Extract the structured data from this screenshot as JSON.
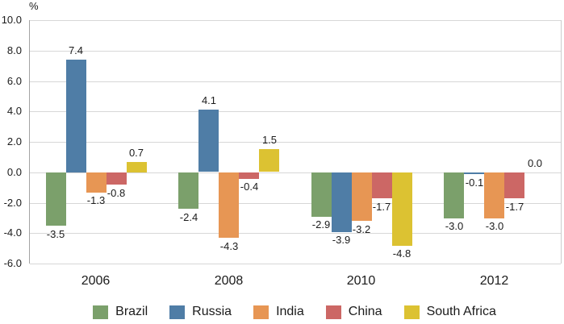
{
  "chart_data": {
    "type": "bar",
    "title": "",
    "ylabel": "%",
    "xlabel": "",
    "categories": [
      "2006",
      "2008",
      "2010",
      "2012"
    ],
    "series": [
      {
        "name": "Brazil",
        "color": "#7BA06B",
        "values": [
          -3.5,
          -2.4,
          -2.9,
          -3.0
        ]
      },
      {
        "name": "Russia",
        "color": "#4F7DA6",
        "values": [
          7.4,
          4.1,
          -3.9,
          -0.1
        ]
      },
      {
        "name": "India",
        "color": "#E79654",
        "values": [
          -1.3,
          -4.3,
          -3.2,
          -3.0
        ]
      },
      {
        "name": "China",
        "color": "#CC6765",
        "values": [
          -0.8,
          -0.4,
          -1.7,
          -1.7
        ]
      },
      {
        "name": "South Africa",
        "color": "#DCC232",
        "values": [
          0.7,
          1.5,
          -4.8,
          0.0
        ]
      }
    ],
    "ylim": [
      -6.0,
      10.0
    ],
    "ytick_step": 2.0,
    "ytick_labels": [
      "10.0",
      "8.0",
      "6.0",
      "4.0",
      "2.0",
      "0.0",
      "-2.0",
      "-4.0",
      "-6.0"
    ],
    "grid": true,
    "legend_position": "bottom",
    "value_labels": true,
    "colors": {
      "gridline": "#d7d7d7",
      "axis_line": "#a3a3a3",
      "text": "#1b1b1b",
      "background": "#ffffff"
    }
  }
}
